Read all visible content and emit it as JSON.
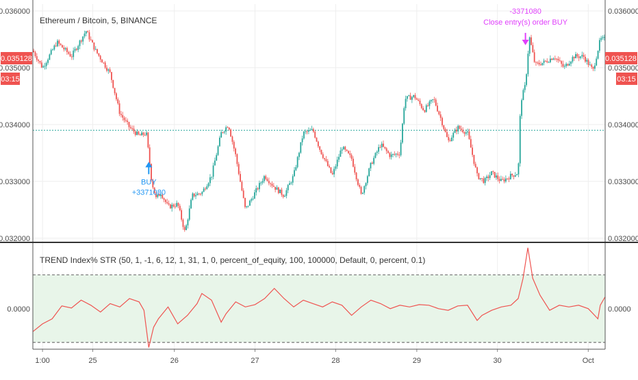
{
  "chart_data": [
    {
      "type": "candlestick",
      "title": "Ethereum / Bitcoin, 5, BINANCE",
      "ylim": [
        0.03195,
        0.03612
      ],
      "y_ticks": [
        "0.036000",
        "0.035000",
        "0.034000",
        "0.033000",
        "0.032000"
      ],
      "y_tick_values": [
        0.036,
        0.035,
        0.034,
        0.033,
        0.032
      ],
      "x_ticks": [
        "1:00",
        "25",
        "26",
        "27",
        "28",
        "29",
        "30",
        "Oct"
      ],
      "x_tick_positions": [
        0.0,
        0.104,
        0.273,
        0.44,
        0.607,
        0.775,
        0.942,
        1.13
      ],
      "x_range": [
        -0.02,
        1.165
      ],
      "price_path": [
        [
          -0.02,
          0.0353
        ],
        [
          0.0,
          0.035
        ],
        [
          0.03,
          0.03545
        ],
        [
          0.06,
          0.0352
        ],
        [
          0.09,
          0.03565
        ],
        [
          0.11,
          0.0353
        ],
        [
          0.14,
          0.0349
        ],
        [
          0.16,
          0.0342
        ],
        [
          0.18,
          0.03395
        ],
        [
          0.2,
          0.0338
        ],
        [
          0.215,
          0.03385
        ],
        [
          0.226,
          0.033
        ],
        [
          0.235,
          0.0327
        ],
        [
          0.245,
          0.0328
        ],
        [
          0.26,
          0.03255
        ],
        [
          0.28,
          0.0326
        ],
        [
          0.295,
          0.0321
        ],
        [
          0.31,
          0.03275
        ],
        [
          0.33,
          0.0328
        ],
        [
          0.35,
          0.0331
        ],
        [
          0.37,
          0.03385
        ],
        [
          0.385,
          0.034
        ],
        [
          0.4,
          0.03345
        ],
        [
          0.42,
          0.0325
        ],
        [
          0.44,
          0.0328
        ],
        [
          0.46,
          0.0331
        ],
        [
          0.48,
          0.0329
        ],
        [
          0.5,
          0.03275
        ],
        [
          0.52,
          0.0331
        ],
        [
          0.54,
          0.03385
        ],
        [
          0.56,
          0.0339
        ],
        [
          0.575,
          0.03355
        ],
        [
          0.6,
          0.0331
        ],
        [
          0.62,
          0.0336
        ],
        [
          0.64,
          0.0334
        ],
        [
          0.66,
          0.03275
        ],
        [
          0.68,
          0.0333
        ],
        [
          0.7,
          0.03365
        ],
        [
          0.72,
          0.03345
        ],
        [
          0.74,
          0.0335
        ],
        [
          0.75,
          0.03445
        ],
        [
          0.77,
          0.0345
        ],
        [
          0.79,
          0.03425
        ],
        [
          0.81,
          0.03445
        ],
        [
          0.825,
          0.0341
        ],
        [
          0.84,
          0.0337
        ],
        [
          0.86,
          0.03395
        ],
        [
          0.88,
          0.03385
        ],
        [
          0.9,
          0.0331
        ],
        [
          0.915,
          0.033
        ],
        [
          0.93,
          0.03315
        ],
        [
          0.95,
          0.033
        ],
        [
          0.97,
          0.0331
        ],
        [
          0.985,
          0.03315
        ],
        [
          0.99,
          0.0344
        ],
        [
          1.0,
          0.0347
        ],
        [
          1.008,
          0.03555
        ],
        [
          1.02,
          0.03505
        ],
        [
          1.04,
          0.0351
        ],
        [
          1.06,
          0.0352
        ],
        [
          1.08,
          0.035
        ],
        [
          1.1,
          0.0352
        ],
        [
          1.12,
          0.0352
        ],
        [
          1.14,
          0.03495
        ],
        [
          1.155,
          0.0355
        ],
        [
          1.17,
          0.0355
        ]
      ],
      "reference_level": 0.0339,
      "last_price": "0.035128",
      "countdown": "03:15",
      "annotations": [
        {
          "x": 0.22,
          "label_lines": [
            "BUY",
            "+3371080"
          ],
          "color": "#2196f3",
          "direction": "up"
        },
        {
          "x": 1.0,
          "label_lines": [
            "-3371080",
            "Close entry(s) order BUY"
          ],
          "color": "#e040fb",
          "direction": "down"
        }
      ],
      "colors": {
        "up": "#26a69a",
        "down": "#ef5350",
        "reference": "#26a69a",
        "badge": "#ef5350"
      }
    },
    {
      "type": "line",
      "title": "TREND Index% STR (50, 1, -1, 6, 12, 1, 31, 1, 0, percent_of_equity, 100, 100000, Default, 0, percent, 0.1)",
      "ylim": [
        -1.2,
        1.9
      ],
      "y_ticks": [
        "0.0000"
      ],
      "y_tick_values": [
        0
      ],
      "upper_band": 1.0,
      "lower_band": -1.0,
      "series": [
        {
          "values": [
            [
              -0.02,
              -0.68
            ],
            [
              0.0,
              -0.45
            ],
            [
              0.02,
              -0.3
            ],
            [
              0.04,
              0.08
            ],
            [
              0.06,
              0.02
            ],
            [
              0.08,
              0.25
            ],
            [
              0.1,
              0.1
            ],
            [
              0.12,
              -0.1
            ],
            [
              0.14,
              0.15
            ],
            [
              0.16,
              0.05
            ],
            [
              0.18,
              0.3
            ],
            [
              0.2,
              0.2
            ],
            [
              0.21,
              -0.05
            ],
            [
              0.22,
              -1.15
            ],
            [
              0.23,
              -0.55
            ],
            [
              0.24,
              -0.3
            ],
            [
              0.26,
              0.05
            ],
            [
              0.28,
              -0.45
            ],
            [
              0.3,
              -0.2
            ],
            [
              0.32,
              0.15
            ],
            [
              0.33,
              0.45
            ],
            [
              0.35,
              0.25
            ],
            [
              0.37,
              -0.4
            ],
            [
              0.38,
              -0.15
            ],
            [
              0.4,
              0.2
            ],
            [
              0.42,
              0.05
            ],
            [
              0.44,
              0.12
            ],
            [
              0.46,
              0.3
            ],
            [
              0.48,
              0.6
            ],
            [
              0.5,
              0.3
            ],
            [
              0.52,
              0.05
            ],
            [
              0.54,
              0.25
            ],
            [
              0.56,
              0.15
            ],
            [
              0.58,
              0.05
            ],
            [
              0.6,
              0.2
            ],
            [
              0.62,
              0.1
            ],
            [
              0.64,
              -0.2
            ],
            [
              0.66,
              0.05
            ],
            [
              0.68,
              0.25
            ],
            [
              0.7,
              0.15
            ],
            [
              0.72,
              0.0
            ],
            [
              0.74,
              0.1
            ],
            [
              0.76,
              0.05
            ],
            [
              0.78,
              0.12
            ],
            [
              0.8,
              0.1
            ],
            [
              0.82,
              0.0
            ],
            [
              0.84,
              -0.05
            ],
            [
              0.86,
              0.08
            ],
            [
              0.88,
              0.1
            ],
            [
              0.9,
              -0.35
            ],
            [
              0.91,
              -0.2
            ],
            [
              0.93,
              -0.05
            ],
            [
              0.95,
              0.05
            ],
            [
              0.97,
              0.1
            ],
            [
              0.985,
              0.3
            ],
            [
              0.995,
              0.9
            ],
            [
              1.005,
              1.8
            ],
            [
              1.015,
              0.9
            ],
            [
              1.03,
              0.4
            ],
            [
              1.05,
              -0.05
            ],
            [
              1.07,
              0.1
            ],
            [
              1.09,
              0.05
            ],
            [
              1.11,
              0.1
            ],
            [
              1.13,
              0.0
            ],
            [
              1.14,
              -0.15
            ],
            [
              1.15,
              -0.3
            ],
            [
              1.155,
              0.1
            ],
            [
              1.165,
              0.35
            ]
          ],
          "color": "#ef5350"
        }
      ],
      "band_fill": "#e8f5e9"
    }
  ]
}
